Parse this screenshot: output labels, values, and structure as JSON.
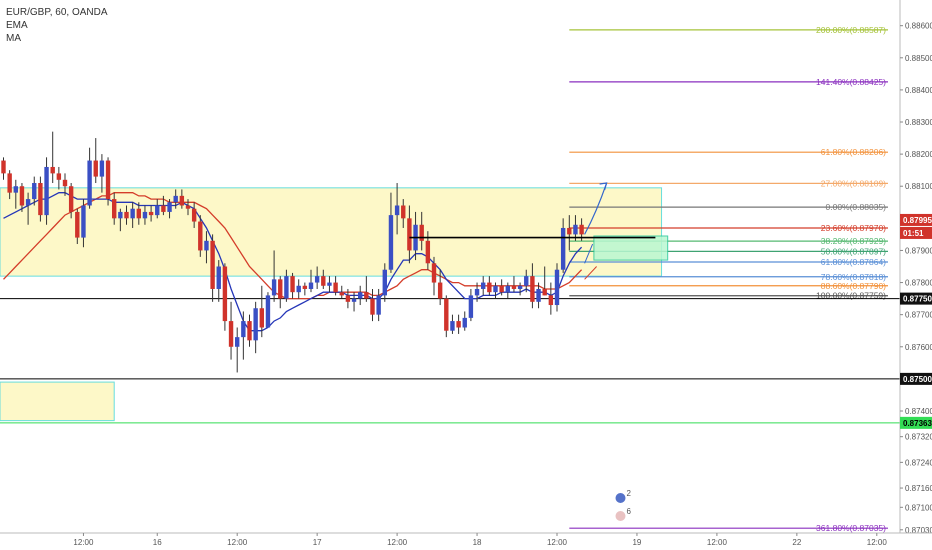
{
  "header": {
    "symbol": "EUR/GBP, 60, OANDA",
    "indicators": [
      "EMA",
      "MA"
    ]
  },
  "colors": {
    "bull": "#3a4fc4",
    "bear": "#d0332b",
    "ema": "#2536b8",
    "ma": "#d43d2a",
    "zone_fill": "#fdf8c8",
    "zone_border": "#66dddd",
    "box_fill": "#b9f7d2",
    "box_border": "#29c79a",
    "support_green": "#33dd55",
    "arrow": "#3366cc"
  },
  "chart_data": {
    "type": "candlestick",
    "symbol": "EUR/GBP",
    "interval": "60",
    "source": "OANDA",
    "y_axis": {
      "min": 0.8702,
      "max": 0.8868,
      "ticks": [
        "0.88600",
        "0.88500",
        "0.88400",
        "0.88300",
        "0.88200",
        "0.88100",
        "0.88000",
        "0.87900",
        "0.87800",
        "0.87700",
        "0.87600",
        "0.87500",
        "0.87400",
        "0.87320",
        "0.87240",
        "0.87160",
        "0.87100",
        "0.87030"
      ]
    },
    "x_axis": {
      "ticks": [
        {
          "label": "12:00",
          "bar": 13
        },
        {
          "label": "16",
          "bar": 25
        },
        {
          "label": "12:00",
          "bar": 38
        },
        {
          "label": "17",
          "bar": 51
        },
        {
          "label": "12:00",
          "bar": 64
        },
        {
          "label": "18",
          "bar": 77
        },
        {
          "label": "12:00",
          "bar": 90
        },
        {
          "label": "19",
          "bar": 103
        },
        {
          "label": "12:00",
          "bar": 116
        },
        {
          "label": "22",
          "bar": 129
        },
        {
          "label": "12:00",
          "bar": 142
        }
      ]
    },
    "candles": [
      [
        0.8818,
        0.8819,
        0.8812,
        0.8814
      ],
      [
        0.8814,
        0.8815,
        0.8806,
        0.8808
      ],
      [
        0.8808,
        0.8812,
        0.8803,
        0.881
      ],
      [
        0.881,
        0.8811,
        0.8802,
        0.8804
      ],
      [
        0.8804,
        0.8808,
        0.8798,
        0.8806
      ],
      [
        0.8806,
        0.8813,
        0.8804,
        0.8811
      ],
      [
        0.8811,
        0.8813,
        0.8799,
        0.8801
      ],
      [
        0.8801,
        0.8819,
        0.8798,
        0.8816
      ],
      [
        0.8816,
        0.8827,
        0.8811,
        0.8814
      ],
      [
        0.8814,
        0.8816,
        0.8809,
        0.8812
      ],
      [
        0.8812,
        0.8814,
        0.8807,
        0.881
      ],
      [
        0.881,
        0.8811,
        0.88,
        0.8802
      ],
      [
        0.8802,
        0.8803,
        0.8792,
        0.8794
      ],
      [
        0.8794,
        0.8806,
        0.8791,
        0.8804
      ],
      [
        0.8804,
        0.8822,
        0.8803,
        0.8818
      ],
      [
        0.8818,
        0.8825,
        0.8811,
        0.8813
      ],
      [
        0.8813,
        0.882,
        0.8808,
        0.8818
      ],
      [
        0.8818,
        0.8819,
        0.8804,
        0.8806
      ],
      [
        0.8806,
        0.8808,
        0.8798,
        0.88
      ],
      [
        0.88,
        0.8803,
        0.8796,
        0.8802
      ],
      [
        0.8802,
        0.8804,
        0.8798,
        0.88
      ],
      [
        0.88,
        0.8805,
        0.8797,
        0.8803
      ],
      [
        0.8803,
        0.8805,
        0.8798,
        0.88
      ],
      [
        0.88,
        0.8804,
        0.8798,
        0.8802
      ],
      [
        0.8802,
        0.8804,
        0.8799,
        0.8801
      ],
      [
        0.8801,
        0.8806,
        0.88,
        0.8804
      ],
      [
        0.8804,
        0.8807,
        0.8801,
        0.8802
      ],
      [
        0.8802,
        0.8806,
        0.88,
        0.8805
      ],
      [
        0.8805,
        0.8809,
        0.8803,
        0.8807
      ],
      [
        0.8807,
        0.8809,
        0.8803,
        0.8804
      ],
      [
        0.8804,
        0.8806,
        0.8801,
        0.8803
      ],
      [
        0.8803,
        0.8805,
        0.8797,
        0.8799
      ],
      [
        0.8799,
        0.8801,
        0.8788,
        0.879
      ],
      [
        0.879,
        0.8796,
        0.8786,
        0.8793
      ],
      [
        0.8793,
        0.8795,
        0.8774,
        0.8778
      ],
      [
        0.8778,
        0.8787,
        0.8774,
        0.8785
      ],
      [
        0.8785,
        0.8786,
        0.8765,
        0.8768
      ],
      [
        0.8768,
        0.8774,
        0.8756,
        0.876
      ],
      [
        0.876,
        0.8766,
        0.8752,
        0.8763
      ],
      [
        0.8763,
        0.8771,
        0.8756,
        0.8768
      ],
      [
        0.8768,
        0.877,
        0.876,
        0.8762
      ],
      [
        0.8762,
        0.8774,
        0.8758,
        0.8772
      ],
      [
        0.8772,
        0.8779,
        0.8763,
        0.8766
      ],
      [
        0.8766,
        0.8777,
        0.8766,
        0.8776
      ],
      [
        0.8776,
        0.879,
        0.8774,
        0.8781
      ],
      [
        0.8781,
        0.8782,
        0.8772,
        0.8775
      ],
      [
        0.8775,
        0.8784,
        0.8774,
        0.8782
      ],
      [
        0.8782,
        0.8783,
        0.8775,
        0.8777
      ],
      [
        0.8777,
        0.8781,
        0.8775,
        0.8779
      ],
      [
        0.8779,
        0.878,
        0.8776,
        0.8778
      ],
      [
        0.8778,
        0.8784,
        0.8777,
        0.878
      ],
      [
        0.878,
        0.8785,
        0.8778,
        0.8782
      ],
      [
        0.8782,
        0.8784,
        0.8778,
        0.8779
      ],
      [
        0.8779,
        0.8782,
        0.8777,
        0.878
      ],
      [
        0.878,
        0.8782,
        0.8776,
        0.8777
      ],
      [
        0.8777,
        0.8779,
        0.8775,
        0.8776
      ],
      [
        0.8776,
        0.8778,
        0.8772,
        0.8774
      ],
      [
        0.8774,
        0.8777,
        0.8771,
        0.8775
      ],
      [
        0.8775,
        0.8779,
        0.8773,
        0.8777
      ],
      [
        0.8777,
        0.8782,
        0.8774,
        0.8775
      ],
      [
        0.8775,
        0.8778,
        0.8768,
        0.877
      ],
      [
        0.877,
        0.8778,
        0.8768,
        0.8776
      ],
      [
        0.8776,
        0.8786,
        0.8774,
        0.8784
      ],
      [
        0.8784,
        0.8808,
        0.8783,
        0.8801
      ],
      [
        0.8801,
        0.8811,
        0.8795,
        0.8804
      ],
      [
        0.8804,
        0.8806,
        0.8797,
        0.88
      ],
      [
        0.88,
        0.8804,
        0.8786,
        0.879
      ],
      [
        0.879,
        0.8802,
        0.8787,
        0.8798
      ],
      [
        0.8798,
        0.8802,
        0.879,
        0.8793
      ],
      [
        0.8793,
        0.8796,
        0.8784,
        0.8786
      ],
      [
        0.8786,
        0.8788,
        0.8776,
        0.878
      ],
      [
        0.878,
        0.8784,
        0.8773,
        0.8775
      ],
      [
        0.8775,
        0.8776,
        0.8763,
        0.8765
      ],
      [
        0.8765,
        0.877,
        0.8764,
        0.8768
      ],
      [
        0.8768,
        0.877,
        0.8764,
        0.8766
      ],
      [
        0.8766,
        0.8771,
        0.8765,
        0.8769
      ],
      [
        0.8769,
        0.8778,
        0.8768,
        0.8776
      ],
      [
        0.8776,
        0.878,
        0.8774,
        0.8778
      ],
      [
        0.8778,
        0.8782,
        0.8776,
        0.878
      ],
      [
        0.878,
        0.8782,
        0.8776,
        0.8777
      ],
      [
        0.8777,
        0.878,
        0.8775,
        0.8779
      ],
      [
        0.8779,
        0.8781,
        0.8776,
        0.8777
      ],
      [
        0.8777,
        0.878,
        0.8775,
        0.8779
      ],
      [
        0.8779,
        0.8782,
        0.8777,
        0.8778
      ],
      [
        0.8778,
        0.878,
        0.8776,
        0.8779
      ],
      [
        0.8779,
        0.8784,
        0.8777,
        0.8782
      ],
      [
        0.8782,
        0.8786,
        0.8772,
        0.8774
      ],
      [
        0.8774,
        0.878,
        0.8772,
        0.8778
      ],
      [
        0.8778,
        0.8785,
        0.8776,
        0.8776
      ],
      [
        0.8776,
        0.878,
        0.877,
        0.8773
      ],
      [
        0.8773,
        0.8786,
        0.8771,
        0.8784
      ],
      [
        0.8784,
        0.88,
        0.8783,
        0.8797
      ],
      [
        0.8797,
        0.8801,
        0.879,
        0.8795
      ],
      [
        0.8795,
        0.8801,
        0.8793,
        0.8798
      ],
      [
        0.8798,
        0.88,
        0.8793,
        0.8795
      ]
    ],
    "ema": [
      0.88,
      0.8801,
      0.8802,
      0.8803,
      0.8804,
      0.8805,
      0.8806,
      0.8806,
      0.8807,
      0.8808,
      0.8808,
      0.8807,
      0.8806,
      0.8806,
      0.8806,
      0.8806,
      0.8806,
      0.8806,
      0.8805,
      0.8805,
      0.8805,
      0.8805,
      0.8804,
      0.8804,
      0.8804,
      0.8804,
      0.8804,
      0.8804,
      0.8804,
      0.8805,
      0.8804,
      0.8803,
      0.88,
      0.8797,
      0.8793,
      0.8789,
      0.8784,
      0.8778,
      0.8773,
      0.8768,
      0.8765,
      0.8765,
      0.8765,
      0.8766,
      0.8768,
      0.8769,
      0.8771,
      0.8772,
      0.8773,
      0.8774,
      0.8775,
      0.8776,
      0.8777,
      0.8777,
      0.8777,
      0.8777,
      0.8776,
      0.8776,
      0.8776,
      0.8776,
      0.8775,
      0.8775,
      0.8777,
      0.8781,
      0.8784,
      0.8787,
      0.8787,
      0.8789,
      0.8789,
      0.8788,
      0.8786,
      0.8784,
      0.8781,
      0.8779,
      0.8777,
      0.8775,
      0.8775,
      0.8775,
      0.8776,
      0.8776,
      0.8776,
      0.8777,
      0.8777,
      0.8777,
      0.8777,
      0.8778,
      0.8777,
      0.8777,
      0.8777,
      0.8776,
      0.8777,
      0.8782,
      0.8786,
      0.8789,
      0.8791
    ],
    "ma": [
      0.8781,
      0.8783,
      0.8785,
      0.8787,
      0.8789,
      0.8791,
      0.8793,
      0.8795,
      0.8797,
      0.8799,
      0.8801,
      0.8802,
      0.8803,
      0.8804,
      0.8805,
      0.8806,
      0.8807,
      0.8807,
      0.8808,
      0.8808,
      0.8808,
      0.8808,
      0.8807,
      0.8807,
      0.8806,
      0.8806,
      0.8806,
      0.8805,
      0.8805,
      0.8805,
      0.8805,
      0.8805,
      0.8804,
      0.8803,
      0.8801,
      0.8799,
      0.8797,
      0.8794,
      0.8791,
      0.8788,
      0.8785,
      0.8783,
      0.8781,
      0.8779,
      0.8777,
      0.8776,
      0.8775,
      0.8775,
      0.8775,
      0.8775,
      0.8775,
      0.8776,
      0.8776,
      0.8777,
      0.8777,
      0.8777,
      0.8777,
      0.8777,
      0.8777,
      0.8777,
      0.8776,
      0.8776,
      0.8777,
      0.8778,
      0.8779,
      0.8781,
      0.8782,
      0.8783,
      0.8784,
      0.8784,
      0.8783,
      0.8782,
      0.8781,
      0.878,
      0.878,
      0.8779,
      0.8779,
      0.8779,
      0.8779,
      0.8779,
      0.8779,
      0.8779,
      0.8779,
      0.8779,
      0.8779,
      0.8779,
      0.8779,
      0.8779,
      0.8778,
      0.8778,
      0.8778,
      0.8779,
      0.878,
      0.8782,
      0.8784
    ],
    "fib_levels": [
      {
        "label": "200.00%(0.88587)",
        "price": 0.88587,
        "color": "#a6c33a"
      },
      {
        "label": "141.40%(0.88425)",
        "price": 0.88425,
        "color": "#8a2fbf"
      },
      {
        "label": "61.80%(0.88206)",
        "price": 0.88206,
        "color": "#f2913a"
      },
      {
        "label": "27.00%(0.88109)",
        "price": 0.88109,
        "color": "#f4a96a"
      },
      {
        "label": "0.00%(0.88035)",
        "price": 0.88035,
        "color": "#777777"
      },
      {
        "label": "23.60%(0.87970)",
        "price": 0.8797,
        "color": "#d43d2a"
      },
      {
        "label": "38.20%(0.87929)",
        "price": 0.87929,
        "color": "#55b870"
      },
      {
        "label": "50.00%(0.87897)",
        "price": 0.87897,
        "color": "#3fa372"
      },
      {
        "label": "61.80%(0.87864)",
        "price": 0.87864,
        "color": "#5a8fd6"
      },
      {
        "label": "78.60%(0.87818)",
        "price": 0.87818,
        "color": "#5a8fd6"
      },
      {
        "label": "88.60%(0.87790)",
        "price": 0.8779,
        "color": "#f2913a"
      },
      {
        "label": "100.00%(0.87759)",
        "price": 0.87759,
        "color": "#555555"
      },
      {
        "label": "361.80%(0.87035)",
        "price": 0.87035,
        "color": "#8a2fbf"
      }
    ],
    "horizontal_lines": [
      {
        "price": 0.8775,
        "label": "0.87750",
        "color": "#000000"
      },
      {
        "price": 0.875,
        "label": "0.87500",
        "color": "#000000"
      },
      {
        "price": 0.87363,
        "label": "0.87363",
        "color": "#33dd55"
      }
    ],
    "price_badges": [
      {
        "label": "0.87995",
        "price": 0.87995,
        "bg": "#d0332b",
        "fg": "#ffffff"
      },
      {
        "label": "01:51",
        "price": 0.8796,
        "bg": "#d0332b",
        "fg": "#ffffff"
      },
      {
        "label": "0.87750",
        "price": 0.8775,
        "bg": "#111111",
        "fg": "#ffffff"
      },
      {
        "label": "0.87500",
        "price": 0.875,
        "bg": "#111111",
        "fg": "#ffffff"
      },
      {
        "label": "0.87363",
        "price": 0.87363,
        "bg": "#33dd55",
        "fg": "#000000"
      }
    ],
    "zones": [
      {
        "name": "resistance-zone",
        "from_bar": 0,
        "to_bar": 107,
        "top": 0.88095,
        "bottom": 0.8782
      },
      {
        "name": "lower-zone",
        "from_bar": 0,
        "to_bar": 18,
        "top": 0.8749,
        "bottom": 0.8737
      }
    ],
    "target_box": {
      "from_bar": 96,
      "to_bar": 108,
      "top": 0.87945,
      "bottom": 0.8787
    },
    "black_segment": {
      "from_bar": 66,
      "to_bar": 106,
      "price": 0.8794
    },
    "events": [
      {
        "count": "2",
        "bar": 100
      },
      {
        "count": "6",
        "bar": 100
      }
    ]
  }
}
